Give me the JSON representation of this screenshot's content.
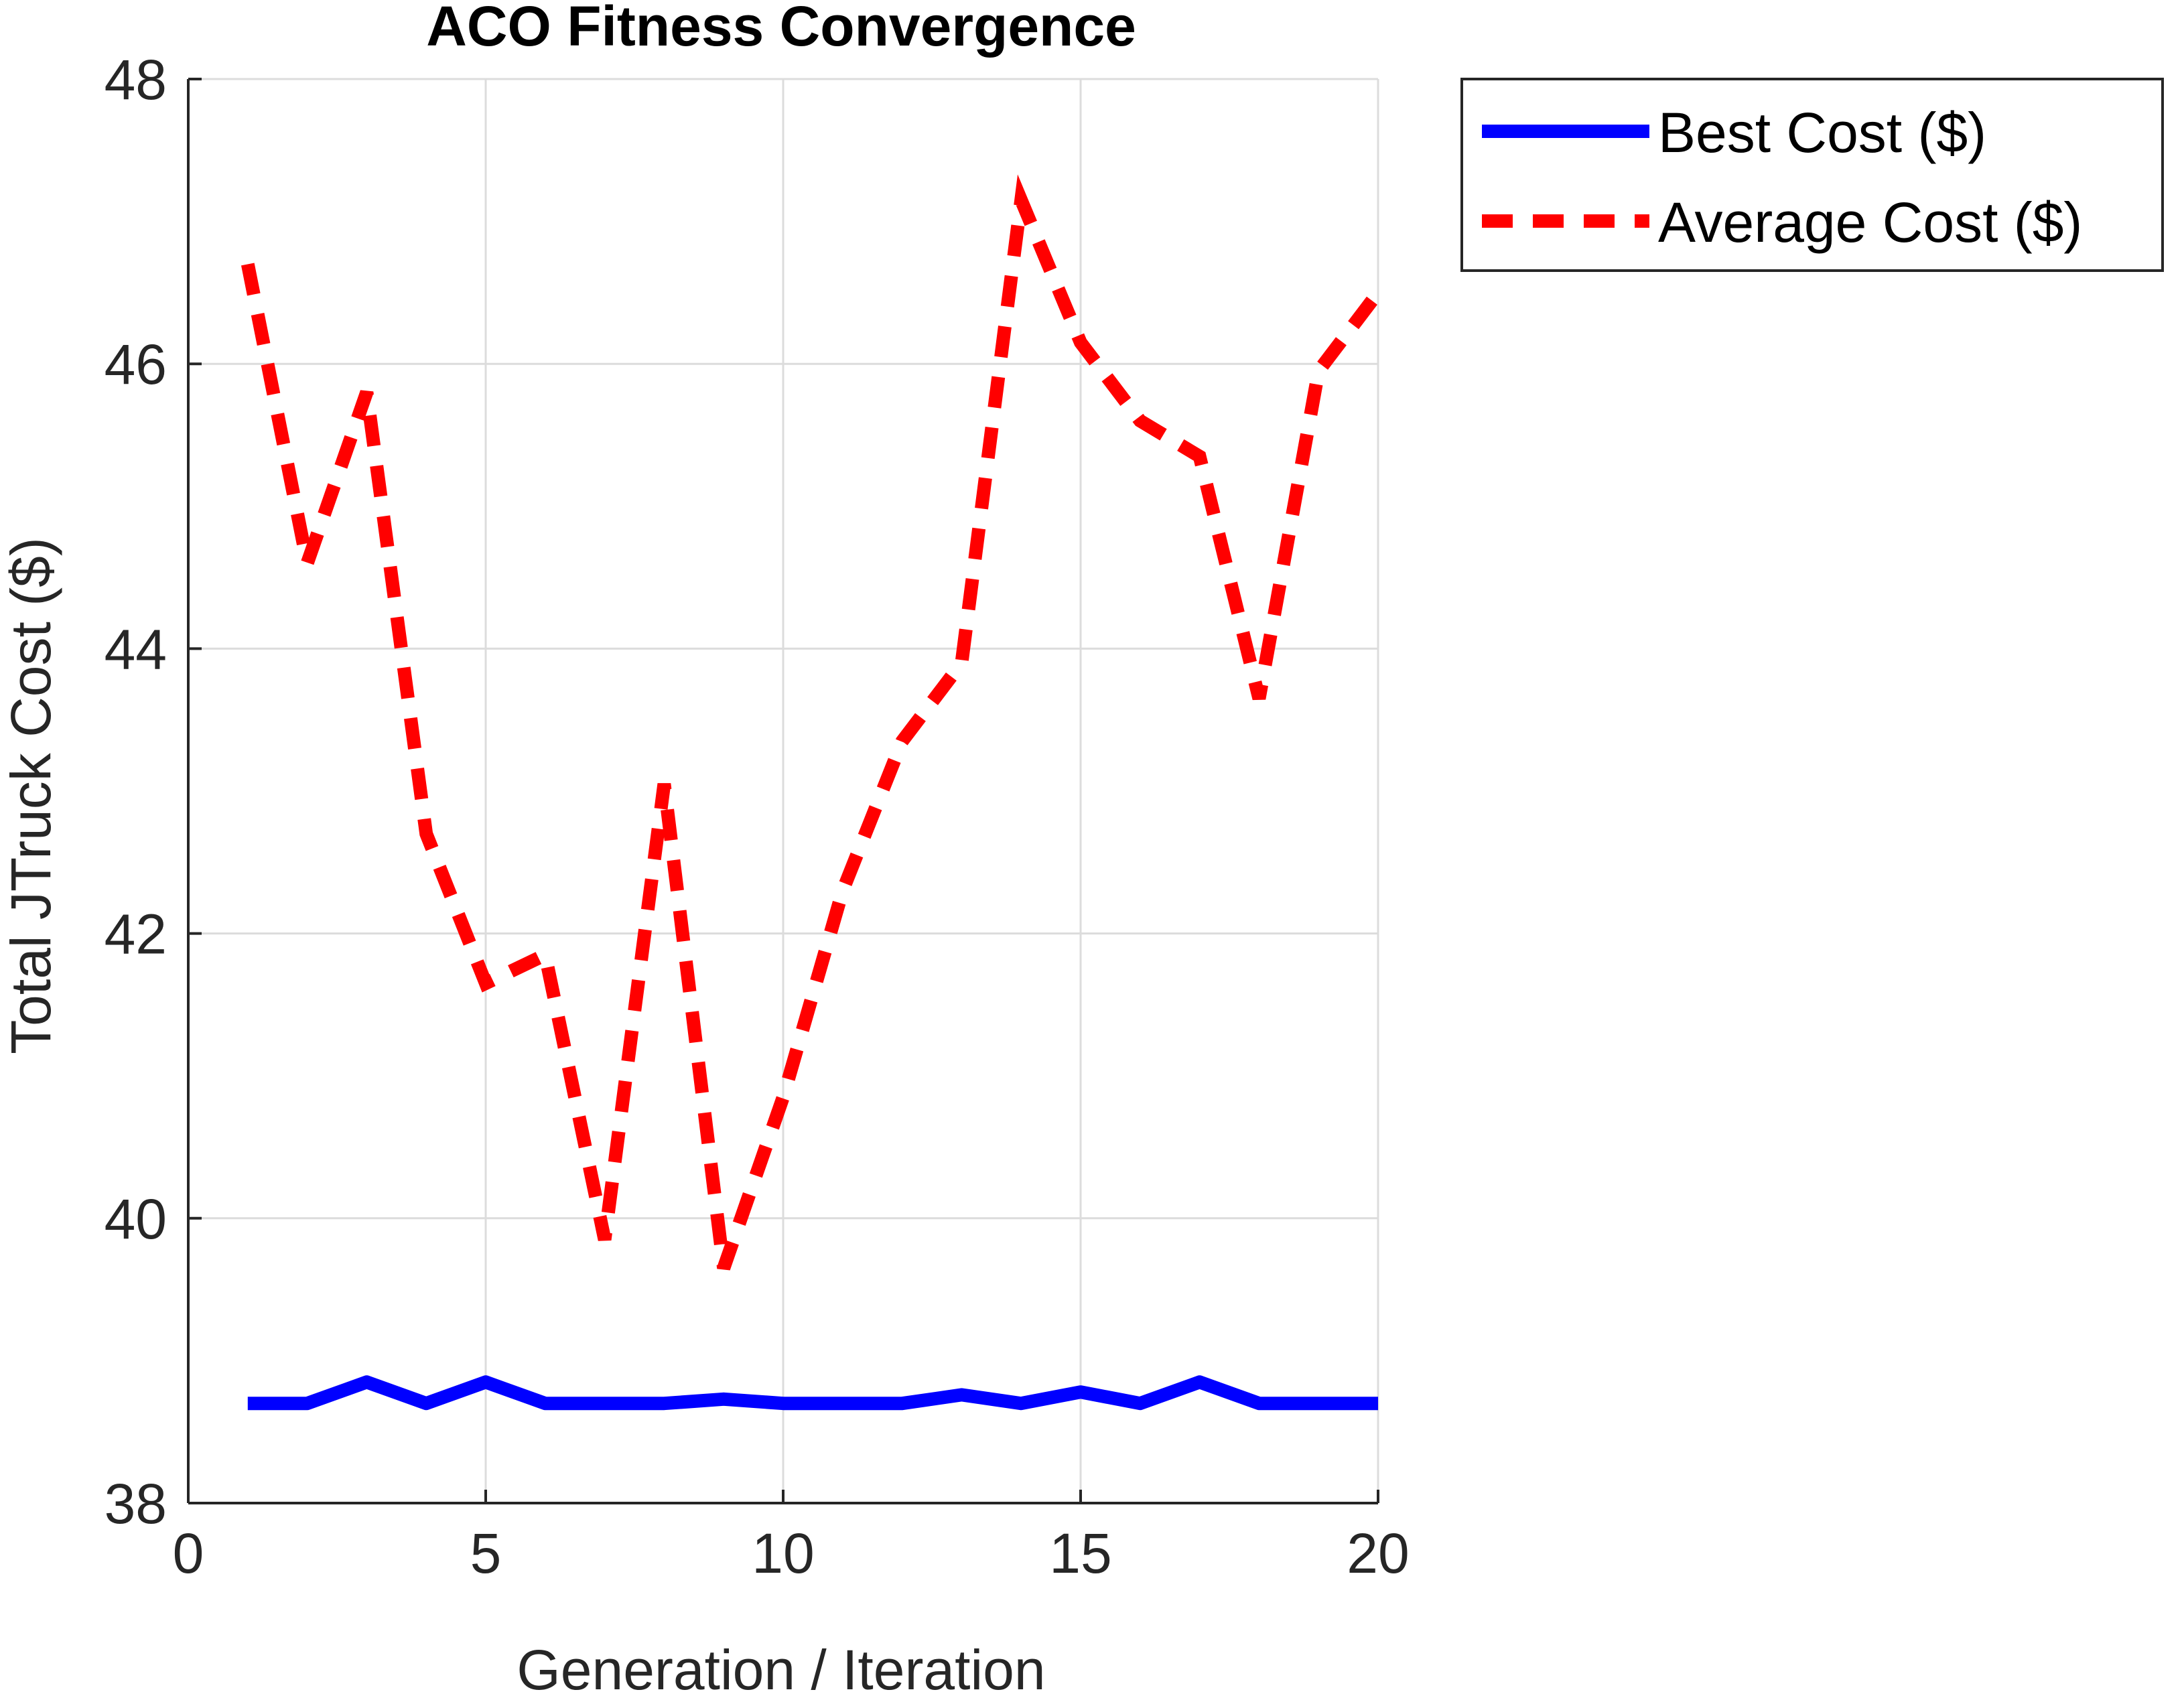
{
  "chart_data": {
    "type": "line",
    "title": "ACO Fitness Convergence",
    "xlabel": "Generation / Iteration",
    "ylabel": "Total JTruck Cost ($)",
    "xlim": [
      0,
      20
    ],
    "ylim": [
      38,
      48
    ],
    "xticks": [
      0,
      5,
      10,
      15,
      20
    ],
    "yticks": [
      38,
      40,
      42,
      44,
      46,
      48
    ],
    "grid": true,
    "legend_position": "outside-top-right",
    "x": [
      1,
      2,
      3,
      4,
      5,
      6,
      7,
      8,
      9,
      10,
      11,
      12,
      13,
      14,
      15,
      16,
      17,
      18,
      19,
      20
    ],
    "series": [
      {
        "name": "Best Cost ($)",
        "color": "#0000ff",
        "style": "solid",
        "values": [
          38.7,
          38.7,
          38.85,
          38.7,
          38.85,
          38.7,
          38.7,
          38.7,
          38.73,
          38.7,
          38.7,
          38.7,
          38.76,
          38.7,
          38.78,
          38.7,
          38.85,
          38.7,
          38.7,
          38.7
        ]
      },
      {
        "name": "Average Cost ($)",
        "color": "#ff0000",
        "style": "dashed",
        "values": [
          46.7,
          44.6,
          45.8,
          42.7,
          41.65,
          41.85,
          39.85,
          43.05,
          39.65,
          40.85,
          42.3,
          43.35,
          43.9,
          47.15,
          46.15,
          45.6,
          45.35,
          43.65,
          45.95,
          46.5
        ]
      }
    ]
  }
}
